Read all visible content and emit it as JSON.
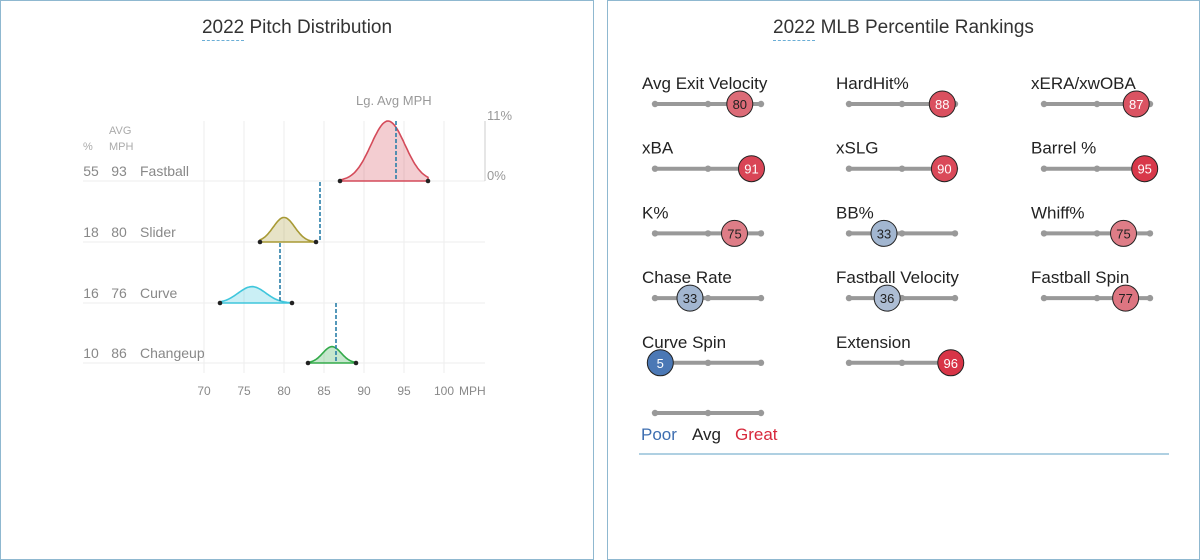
{
  "pitch_panel": {
    "title_year": "2022",
    "title_rest": " Pitch Distribution",
    "col_pct_header": "%",
    "col_avg_header_1": "AVG",
    "col_avg_header_2": "MPH",
    "lg_avg_label": "Lg. Avg MPH",
    "scale_max_label": "11%",
    "scale_min_label": "0%",
    "x_unit": "MPH",
    "colors": {
      "Fastball": "#d44b5a",
      "Slider": "#a89a35",
      "Curve": "#3fc6dc",
      "Changeup": "#33aa4a",
      "lg_avg_line": "#2a7fa8"
    }
  },
  "percentile_panel": {
    "title_year": "2022",
    "title_rest": " MLB Percentile Rankings",
    "legend": {
      "poor": "Poor",
      "avg": "Avg",
      "great": "Great"
    },
    "colors": {
      "poor": "#3d6eb0",
      "great": "#d7283b",
      "avg_text": "#222222",
      "track": "#999999"
    }
  },
  "chart_data": [
    {
      "type": "area",
      "title": "2022 Pitch Distribution",
      "xlabel": "MPH",
      "xlim": [
        70,
        100
      ],
      "xticks": [
        70,
        75,
        80,
        85,
        90,
        95,
        100
      ],
      "ylim": [
        0,
        11
      ],
      "series": [
        {
          "name": "Fastball",
          "pct": 55,
          "avg_mph": 93,
          "lg_avg_mph": 94,
          "range": [
            87,
            98
          ],
          "peak_mph": 93,
          "peak_pct": 11
        },
        {
          "name": "Slider",
          "pct": 18,
          "avg_mph": 80,
          "lg_avg_mph": 84.5,
          "range": [
            77,
            84
          ],
          "peak_mph": 80,
          "peak_pct": 4.5
        },
        {
          "name": "Curve",
          "pct": 16,
          "avg_mph": 76,
          "lg_avg_mph": 79.5,
          "range": [
            72,
            81
          ],
          "peak_mph": 76,
          "peak_pct": 3
        },
        {
          "name": "Changeup",
          "pct": 10,
          "avg_mph": 86,
          "lg_avg_mph": 86.5,
          "range": [
            83,
            89
          ],
          "peak_mph": 86,
          "peak_pct": 3
        }
      ]
    },
    {
      "type": "scatter",
      "title": "2022 MLB Percentile Rankings",
      "xlim": [
        0,
        100
      ],
      "metrics": [
        {
          "label": "Avg Exit Velocity",
          "percentile": 80
        },
        {
          "label": "HardHit%",
          "percentile": 88
        },
        {
          "label": "xERA/xwOBA",
          "percentile": 87
        },
        {
          "label": "xBA",
          "percentile": 91
        },
        {
          "label": "xSLG",
          "percentile": 90
        },
        {
          "label": "Barrel %",
          "percentile": 95
        },
        {
          "label": "K%",
          "percentile": 75
        },
        {
          "label": "BB%",
          "percentile": 33
        },
        {
          "label": "Whiff%",
          "percentile": 75
        },
        {
          "label": "Chase Rate",
          "percentile": 33
        },
        {
          "label": "Fastball Velocity",
          "percentile": 36
        },
        {
          "label": "Fastball Spin",
          "percentile": 77
        },
        {
          "label": "Curve Spin",
          "percentile": 5
        },
        {
          "label": "Extension",
          "percentile": 96
        }
      ]
    }
  ]
}
